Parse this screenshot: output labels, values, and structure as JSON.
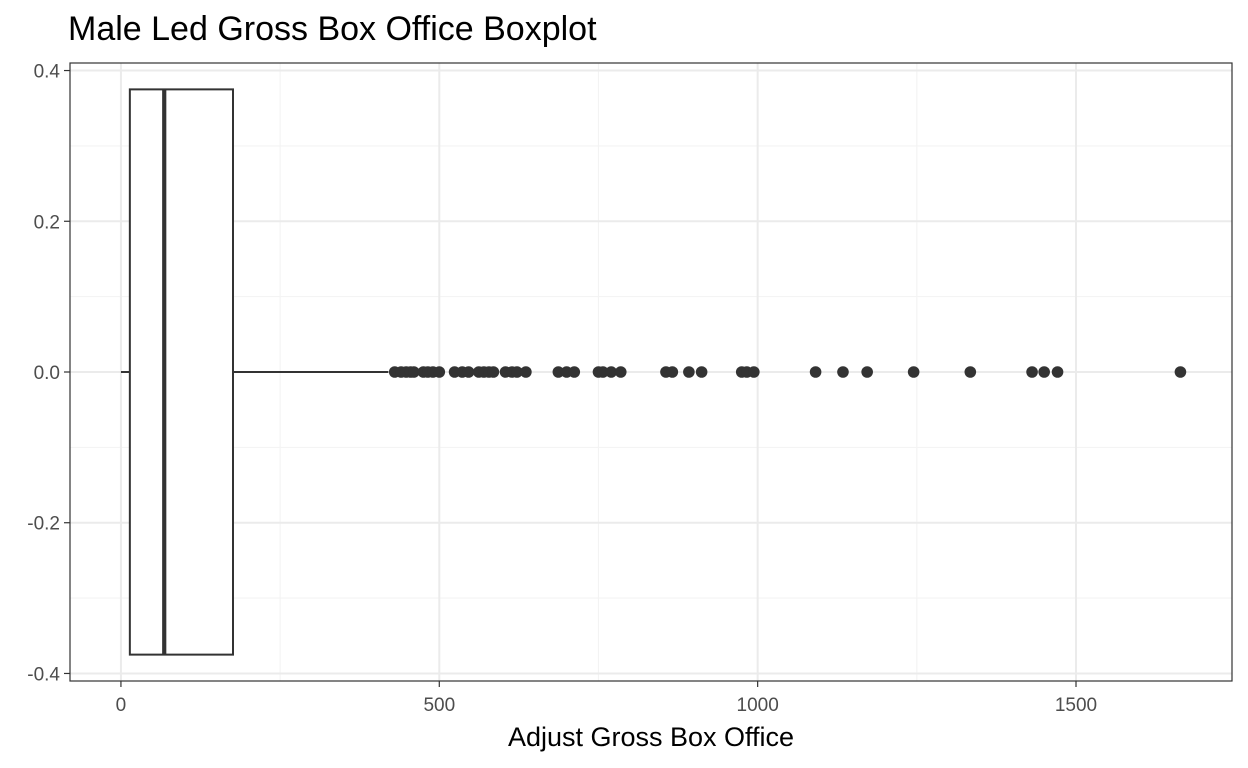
{
  "chart_data": {
    "type": "boxplot",
    "title": "Male Led Gross Box Office Boxplot",
    "xlabel": "Adjust Gross Box Office",
    "ylabel": "",
    "xlim": [
      -80,
      1745
    ],
    "ylim": [
      -0.41,
      0.41
    ],
    "x_ticks": [
      0,
      500,
      1000,
      1500
    ],
    "x_tick_labels": [
      "0",
      "500",
      "1000",
      "1500"
    ],
    "y_ticks": [
      0.4,
      0.2,
      0.0,
      -0.2,
      -0.4
    ],
    "y_tick_labels": [
      "0.4",
      "0.2",
      "0.0",
      "-0.2",
      "-0.4"
    ],
    "grid": true,
    "box": {
      "y": 0,
      "half_width": 0.375,
      "whisker_low": 0,
      "q1": 14,
      "median": 68,
      "q3": 176,
      "whisker_high": 420
    },
    "outliers": [
      430,
      440,
      448,
      455,
      460,
      475,
      482,
      490,
      500,
      524,
      536,
      546,
      562,
      570,
      578,
      585,
      604,
      614,
      622,
      636,
      687,
      700,
      712,
      750,
      757,
      770,
      785,
      856,
      866,
      892,
      912,
      975,
      983,
      994,
      1091,
      1134,
      1172,
      1245,
      1334,
      1431,
      1450,
      1471,
      1664
    ],
    "colors": {
      "background": "#ffffff",
      "grid_major": "#ebebeb",
      "grid_minor": "#f3f3f3",
      "panel_border": "#333333",
      "box_stroke": "#333333",
      "points": "#333333",
      "tick_text": "#4d4d4d",
      "title": "#000000"
    }
  }
}
